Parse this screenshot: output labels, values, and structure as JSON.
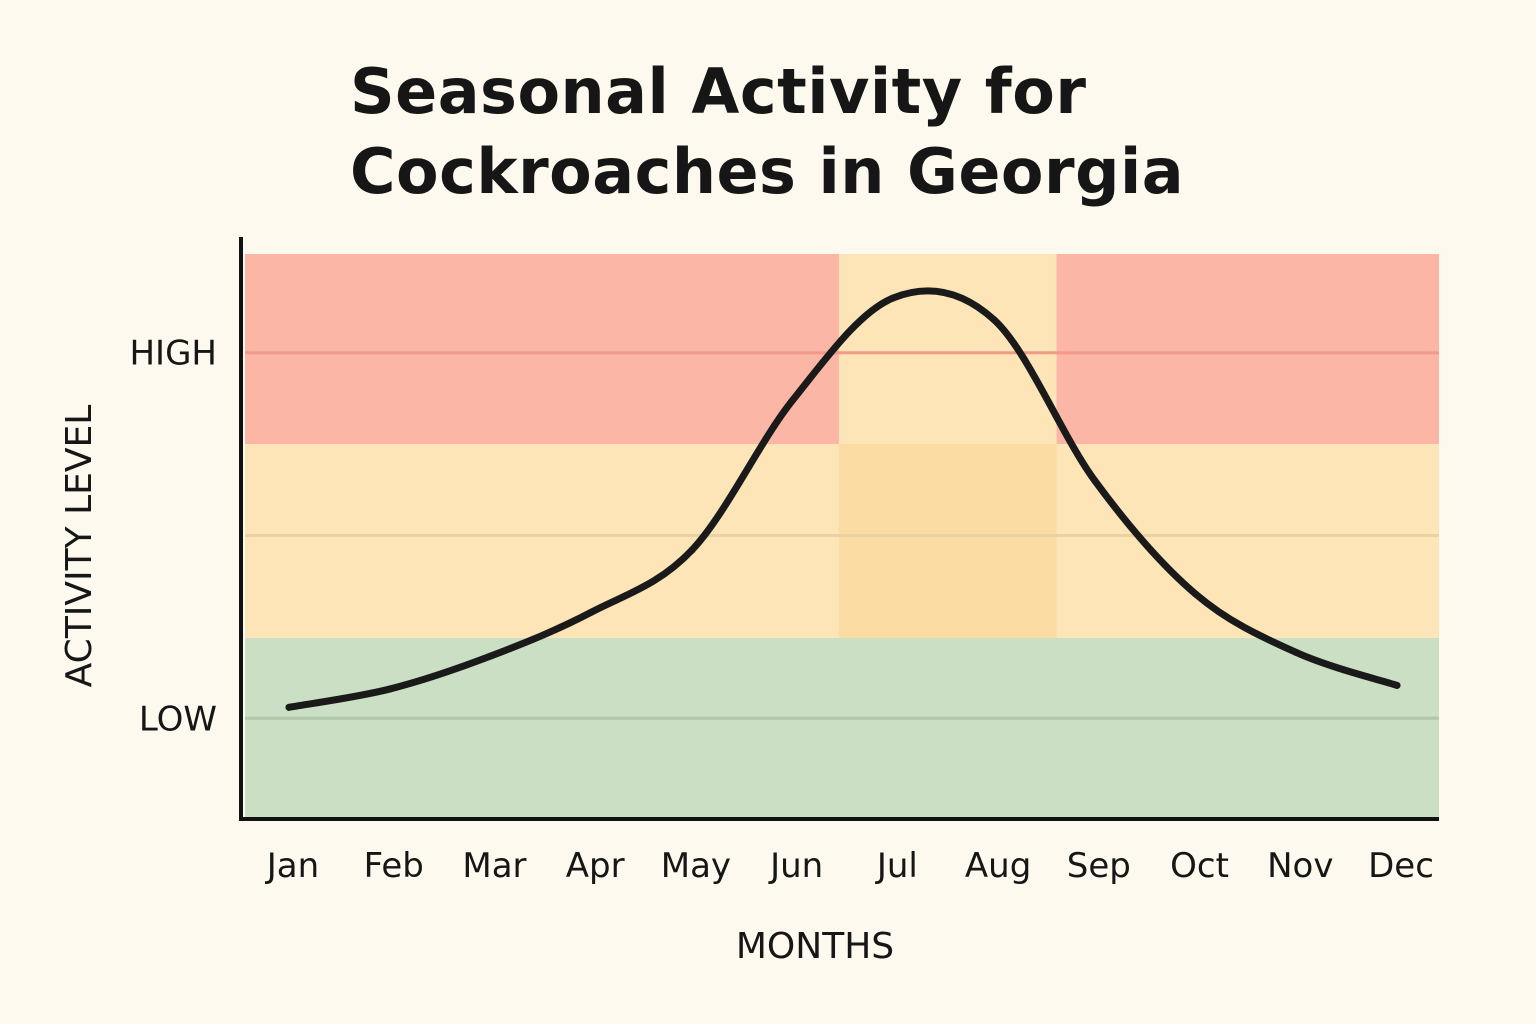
{
  "chart_data": {
    "type": "line",
    "title_lines": [
      "Seasonal Activity for",
      "Cockroaches in Georgia"
    ],
    "xlabel": "MONTHS",
    "ylabel": "ACTIVITY LEVEL",
    "categories": [
      "Jan",
      "Feb",
      "Mar",
      "Apr",
      "May",
      "Jun",
      "Jul",
      "Aug",
      "Sep",
      "Oct",
      "Nov",
      "Dec"
    ],
    "y_tick_labels": [
      {
        "label": "LOW",
        "value": 0
      },
      {
        "label": "HIGH",
        "value": 1
      }
    ],
    "ylim": [
      -0.27,
      1.27
    ],
    "series": [
      {
        "values": [
          0.03,
          0.08,
          0.17,
          0.29,
          0.46,
          0.87,
          1.15,
          1.09,
          0.65,
          0.34,
          0.18,
          0.09
        ],
        "color": "#1a1a1a"
      }
    ],
    "bands": [
      {
        "from": -0.27,
        "to": 0.22,
        "color": "#cadfc4",
        "level": "low"
      },
      {
        "from": 0.22,
        "to": 0.75,
        "color": "#fde5b8",
        "level": "medium"
      },
      {
        "from": 0.75,
        "to": 1.27,
        "color": "#fbb6a5",
        "level": "high"
      }
    ],
    "peak_months": [
      "Jul",
      "Aug"
    ],
    "peak_colors": {
      "upper": "#fde5b8",
      "middle": "#fbdca2"
    },
    "grid": true,
    "legend": "none"
  }
}
